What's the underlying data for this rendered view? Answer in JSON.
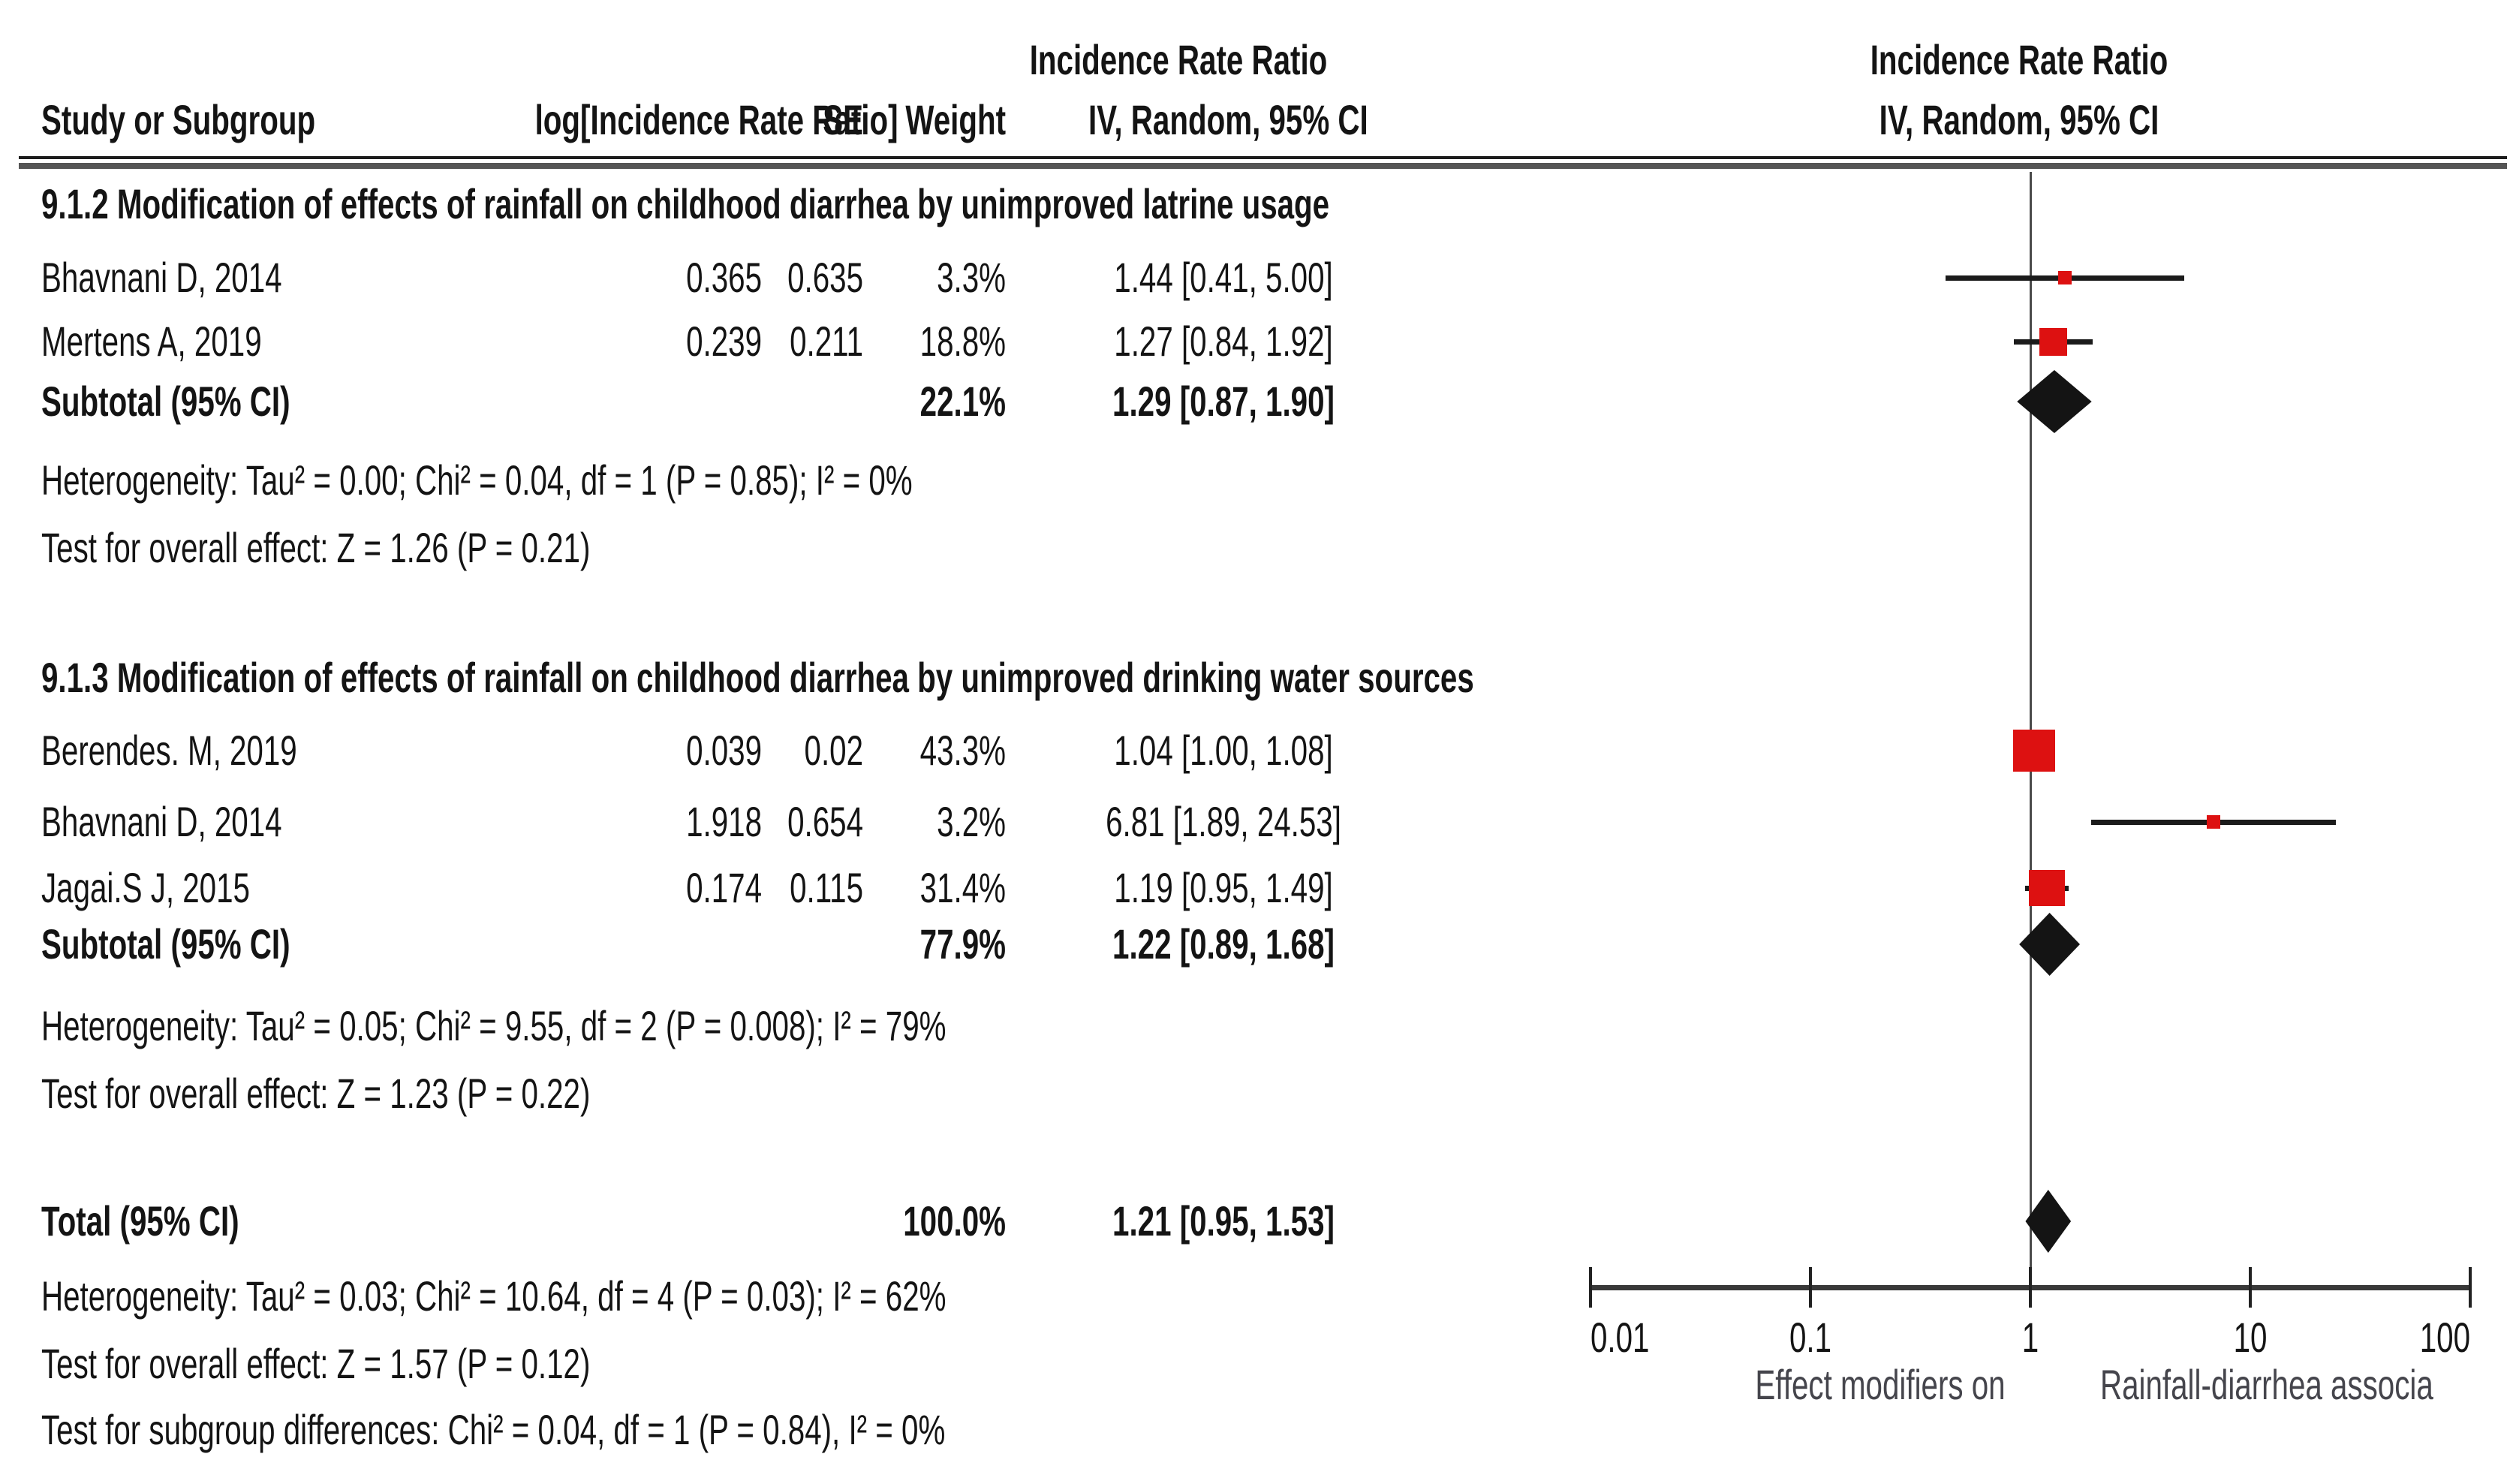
{
  "colors": {
    "marker_red": "#dd1111",
    "diamond_black": "#141414",
    "text": "#141414",
    "axis_gray": "#3a3a3a",
    "caption_gray": "#45454c"
  },
  "header": {
    "stats_effect": "Incidence Rate Ratio",
    "stats_model": "IV, Random, 95% CI",
    "plot_effect": "Incidence Rate Ratio",
    "plot_model": "IV, Random, 95% CI",
    "study_col": "Study or Subgroup",
    "log_col": "log[Incidence Rate Ratio]",
    "se_col": "SE",
    "weight_col": "Weight"
  },
  "chart_data": {
    "type": "forest",
    "effect_measure": "Incidence Rate Ratio",
    "model": "IV, Random, 95% CI",
    "x_axis": {
      "scale": "log",
      "ticks": [
        0.01,
        0.1,
        1,
        10,
        100
      ],
      "labels": [
        "0.01",
        "0.1",
        "1",
        "10",
        "100"
      ]
    },
    "caption_left": "Effect modifiers on",
    "caption_right": "Rainfall-diarrhea associa",
    "subgroups": [
      {
        "label": "9.1.2 Modification of effects of rainfall on childhood diarrhea by unimproved latrine usage",
        "studies": [
          {
            "name": "Bhavnani D, 2014",
            "log_irr": "0.365",
            "se": "0.635",
            "weight": "3.3%",
            "weight_pct": 3.3,
            "ci_text": "1.44 [0.41, 5.00]",
            "est": 1.44,
            "lo": 0.41,
            "hi": 5.0
          },
          {
            "name": "Mertens A, 2019",
            "log_irr": "0.239",
            "se": "0.211",
            "weight": "18.8%",
            "weight_pct": 18.8,
            "ci_text": "1.27 [0.84, 1.92]",
            "est": 1.27,
            "lo": 0.84,
            "hi": 1.92
          }
        ],
        "subtotal": {
          "name": "Subtotal (95% CI)",
          "weight": "22.1%",
          "ci_text": "1.29 [0.87, 1.90]",
          "est": 1.29,
          "lo": 0.87,
          "hi": 1.9
        },
        "heterogeneity": "Heterogeneity: Tau² = 0.00; Chi² = 0.04, df = 1 (P = 0.85); I² = 0%",
        "overall_effect": "Test for overall effect: Z = 1.26 (P = 0.21)"
      },
      {
        "label": "9.1.3 Modification of effects of rainfall on childhood diarrhea by unimproved drinking water sources",
        "studies": [
          {
            "name": "Berendes. M, 2019",
            "log_irr": "0.039",
            "se": "0.02",
            "weight": "43.3%",
            "weight_pct": 43.3,
            "ci_text": "1.04 [1.00, 1.08]",
            "est": 1.04,
            "lo": 1.0,
            "hi": 1.08
          },
          {
            "name": "Bhavnani D, 2014",
            "log_irr": "1.918",
            "se": "0.654",
            "weight": "3.2%",
            "weight_pct": 3.2,
            "ci_text": "6.81 [1.89, 24.53]",
            "est": 6.81,
            "lo": 1.89,
            "hi": 24.53
          },
          {
            "name": "Jagai.S J, 2015",
            "log_irr": "0.174",
            "se": "0.115",
            "weight": "31.4%",
            "weight_pct": 31.4,
            "ci_text": "1.19 [0.95, 1.49]",
            "est": 1.19,
            "lo": 0.95,
            "hi": 1.49
          }
        ],
        "subtotal": {
          "name": "Subtotal (95% CI)",
          "weight": "77.9%",
          "ci_text": "1.22 [0.89, 1.68]",
          "est": 1.22,
          "lo": 0.89,
          "hi": 1.68
        },
        "heterogeneity": "Heterogeneity: Tau² = 0.05; Chi² = 9.55, df = 2 (P = 0.008); I² = 79%",
        "overall_effect": "Test for overall effect: Z = 1.23 (P = 0.22)"
      }
    ],
    "total": {
      "name": "Total (95% CI)",
      "weight": "100.0%",
      "ci_text": "1.21 [0.95, 1.53]",
      "est": 1.21,
      "lo": 0.95,
      "hi": 1.53
    },
    "total_heterogeneity": "Heterogeneity: Tau² = 0.03; Chi² = 10.64, df = 4 (P = 0.03); I² = 62%",
    "total_overall_effect": "Test for overall effect: Z = 1.57 (P = 0.12)",
    "subgroup_differences": "Test for subgroup differences: Chi² = 0.04, df = 1 (P = 0.84), I² = 0%"
  }
}
